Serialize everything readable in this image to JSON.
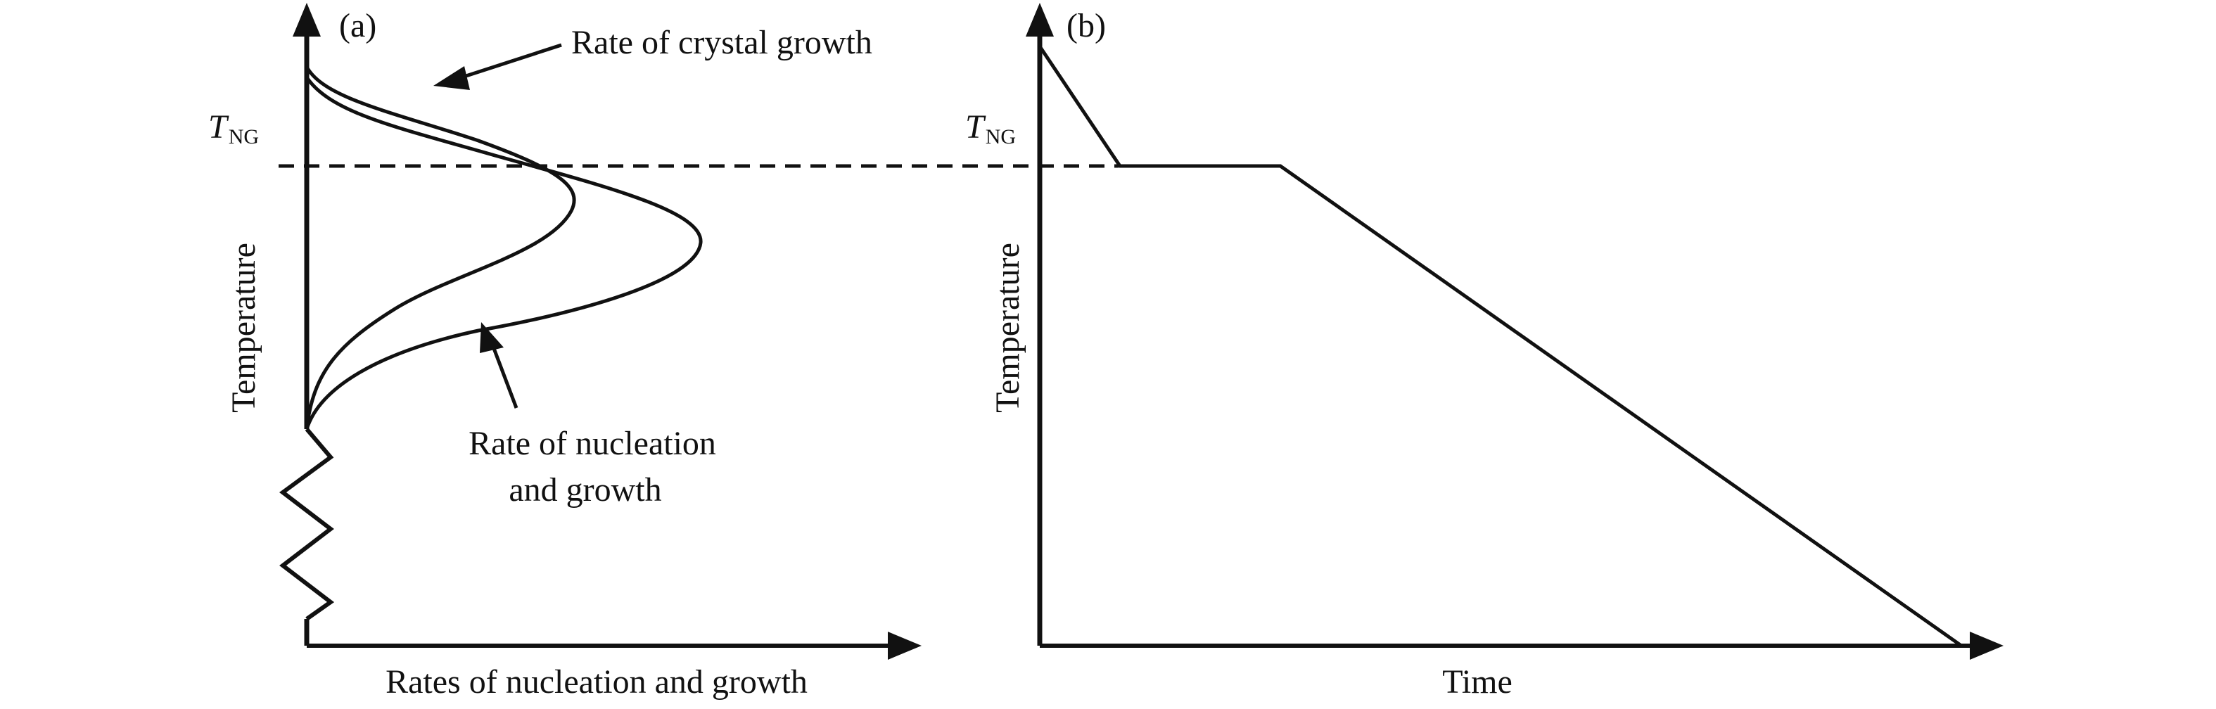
{
  "panel_a": {
    "tag": "(a)",
    "y_axis_label": "Temperature",
    "x_axis_label": "Rates of nucleation and growth",
    "threshold_label_main": "T",
    "threshold_label_sub": "NG",
    "callout_crystal_growth": "Rate of crystal growth",
    "callout_nucleation_line1": "Rate of nucleation",
    "callout_nucleation_line2": "and growth"
  },
  "panel_b": {
    "tag": "(b)",
    "y_axis_label": "Temperature",
    "x_axis_label": "Time",
    "threshold_label_main": "T",
    "threshold_label_sub": "NG"
  },
  "colors": {
    "stroke": "#111111",
    "background": "#ffffff"
  }
}
